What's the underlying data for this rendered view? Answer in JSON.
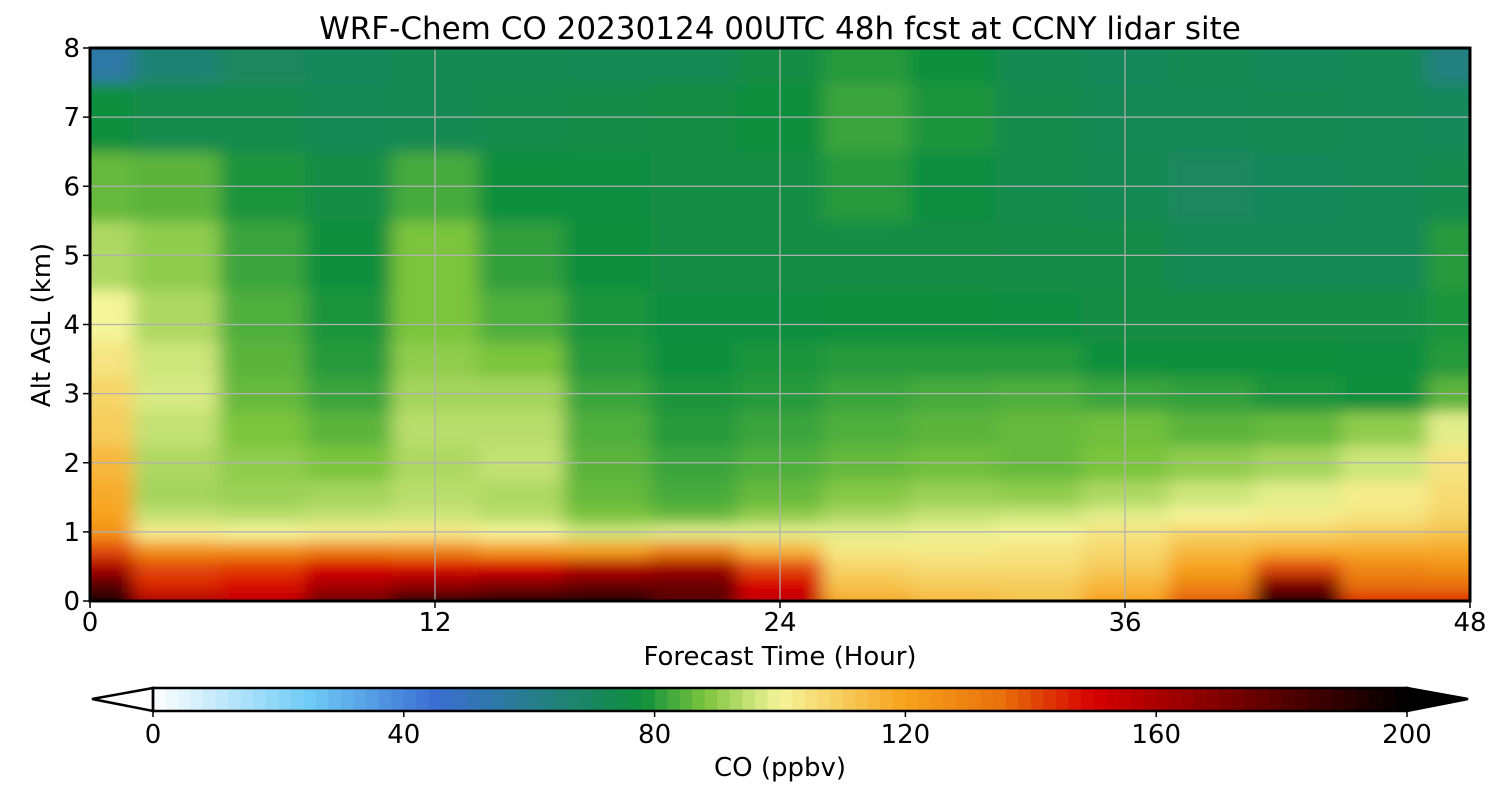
{
  "chart_data": {
    "type": "heatmap",
    "title": "WRF-Chem CO  20230124 00UTC 48h fcst at CCNY lidar site",
    "xlabel": "Forecast Time (Hour)",
    "ylabel": "Alt AGL (km)",
    "xlim": [
      0,
      48
    ],
    "ylim": [
      0,
      8
    ],
    "xticks": [
      "0",
      "12",
      "24",
      "36",
      "48"
    ],
    "xtick_values": [
      0,
      12,
      24,
      36,
      48
    ],
    "yticks": [
      "0",
      "1",
      "2",
      "3",
      "4",
      "5",
      "6",
      "7",
      "8"
    ],
    "ytick_values": [
      0,
      1,
      2,
      3,
      4,
      5,
      6,
      7,
      8
    ],
    "grid": true,
    "colorbar": {
      "label": "CO  (ppbv)",
      "ticks": [
        "0",
        "40",
        "80",
        "120",
        "160",
        "200"
      ],
      "tick_values": [
        0,
        40,
        80,
        120,
        160,
        200
      ],
      "range": [
        0,
        200
      ],
      "extend": "both",
      "orientation": "horizontal",
      "colors": [
        "#ffffff",
        "#6ecbf5",
        "#3b6ed2",
        "#0f8f3c",
        "#7cc43e",
        "#f5f59a",
        "#f7a21c",
        "#e8720c",
        "#d60000",
        "#6b0000",
        "#000000"
      ],
      "color_stops": [
        0,
        25,
        45,
        78,
        88,
        100,
        120,
        135,
        150,
        175,
        200
      ]
    },
    "times": [
      0,
      3,
      6,
      9,
      12,
      15,
      18,
      21,
      24,
      27,
      30,
      33,
      36,
      39,
      42,
      45,
      48
    ],
    "altitudes": [
      0,
      0.25,
      0.5,
      0.75,
      1,
      1.25,
      1.5,
      2,
      2.5,
      3,
      3.5,
      4,
      5,
      6,
      7,
      8
    ],
    "values": [
      [
        200,
        160,
        155,
        175,
        200,
        200,
        200,
        180,
        155,
        118,
        115,
        112,
        120,
        138,
        200,
        145,
        145
      ],
      [
        180,
        145,
        148,
        160,
        165,
        170,
        175,
        175,
        150,
        112,
        110,
        110,
        115,
        128,
        170,
        135,
        135
      ],
      [
        160,
        140,
        142,
        150,
        148,
        150,
        158,
        162,
        140,
        108,
        106,
        106,
        110,
        120,
        140,
        128,
        125
      ],
      [
        140,
        125,
        125,
        130,
        128,
        122,
        120,
        130,
        115,
        103,
        103,
        104,
        107,
        114,
        118,
        118,
        118
      ],
      [
        125,
        102,
        100,
        102,
        103,
        100,
        96,
        98,
        98,
        98,
        99,
        100,
        104,
        108,
        108,
        110,
        112
      ],
      [
        120,
        95,
        94,
        95,
        96,
        94,
        88,
        86,
        90,
        93,
        95,
        96,
        98,
        100,
        102,
        104,
        108
      ],
      [
        118,
        92,
        91,
        92,
        94,
        93,
        86,
        83,
        86,
        89,
        91,
        90,
        93,
        96,
        98,
        102,
        106
      ],
      [
        115,
        93,
        90,
        88,
        93,
        95,
        85,
        82,
        84,
        86,
        87,
        86,
        88,
        90,
        92,
        96,
        104
      ],
      [
        110,
        95,
        88,
        85,
        94,
        94,
        84,
        80,
        82,
        84,
        85,
        86,
        87,
        85,
        86,
        90,
        98
      ],
      [
        108,
        97,
        86,
        82,
        92,
        92,
        82,
        79,
        80,
        82,
        83,
        84,
        82,
        81,
        79,
        78,
        85
      ],
      [
        104,
        96,
        85,
        80,
        90,
        88,
        80,
        78,
        79,
        80,
        80,
        80,
        78,
        78,
        78,
        77,
        80
      ],
      [
        100,
        93,
        84,
        79,
        88,
        84,
        79,
        77,
        77,
        78,
        78,
        77,
        76,
        76,
        76,
        76,
        79
      ],
      [
        93,
        90,
        82,
        78,
        88,
        81,
        78,
        76,
        76,
        76,
        76,
        75,
        75,
        72,
        72,
        72,
        80
      ],
      [
        86,
        85,
        79,
        76,
        83,
        78,
        77,
        76,
        76,
        80,
        77,
        74,
        73,
        70,
        71,
        72,
        74
      ],
      [
        78,
        74,
        74,
        72,
        73,
        74,
        75,
        76,
        78,
        82,
        79,
        74,
        72,
        72,
        73,
        72,
        71
      ],
      [
        55,
        66,
        70,
        71,
        73,
        73,
        72,
        72,
        76,
        80,
        78,
        73,
        71,
        73,
        71,
        72,
        63
      ]
    ]
  }
}
